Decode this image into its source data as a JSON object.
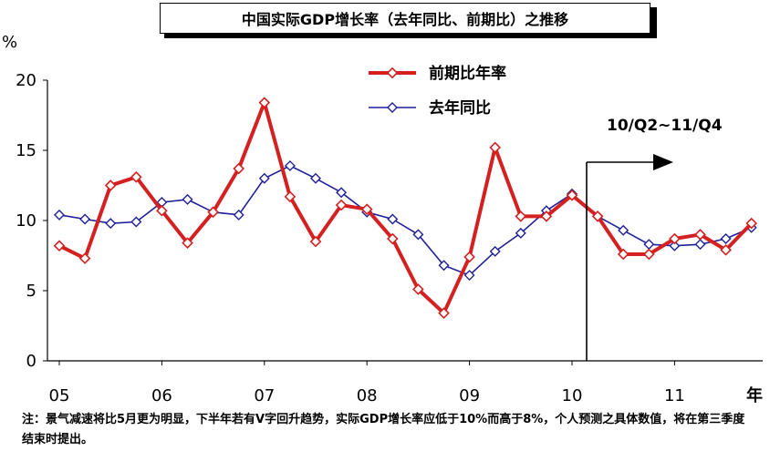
{
  "title": "中国实际GDP增长率（去年同比、前期比）之推移",
  "y_unit": "%",
  "x_unit": "年",
  "annotation": "10/Q2~11/Q4",
  "note": "注：景气减速将比5月更为明显，下半年若有V字回升趋势，实际GDP增长率应低于10%而高于8%，个人预测之具体数值，将在第三季度结束时提出。",
  "colors": {
    "qoq": "#d42020",
    "yoy": "#1f1f9a"
  },
  "chart_data": {
    "type": "line",
    "title": "中国实际GDP增长率（去年同比、前期比）之推移",
    "ylabel": "%",
    "xlabel": "年",
    "ylim": [
      0,
      20
    ],
    "yticks": [
      0,
      5,
      10,
      15,
      20
    ],
    "x_tick_labels": [
      "05",
      "06",
      "07",
      "08",
      "09",
      "10",
      "11"
    ],
    "x": [
      "05Q1",
      "05Q2",
      "05Q3",
      "05Q4",
      "06Q1",
      "06Q2",
      "06Q3",
      "06Q4",
      "07Q1",
      "07Q2",
      "07Q3",
      "07Q4",
      "08Q1",
      "08Q2",
      "08Q3",
      "08Q4",
      "09Q1",
      "09Q2",
      "09Q3",
      "09Q4",
      "10Q1",
      "10Q2",
      "10Q3",
      "10Q4",
      "11Q1",
      "11Q2",
      "11Q3",
      "11Q4"
    ],
    "grid": false,
    "legend": "top-center",
    "series": [
      {
        "name": "前期比年率",
        "values": [
          8.2,
          7.3,
          12.5,
          13.1,
          10.7,
          8.4,
          10.6,
          13.7,
          18.4,
          11.7,
          8.5,
          11.1,
          10.8,
          8.7,
          5.1,
          3.4,
          7.4,
          15.2,
          10.3,
          10.3,
          11.8,
          10.3,
          7.6,
          7.6,
          8.7,
          9.0,
          7.9,
          9.8
        ]
      },
      {
        "name": "去年同比",
        "values": [
          10.4,
          10.1,
          9.8,
          9.9,
          11.3,
          11.5,
          10.6,
          10.4,
          13.0,
          13.9,
          13.0,
          12.0,
          10.6,
          10.1,
          9.0,
          6.8,
          6.1,
          7.8,
          9.1,
          10.7,
          11.9,
          10.3,
          9.3,
          8.3,
          8.2,
          8.3,
          8.7,
          9.5
        ]
      }
    ]
  }
}
